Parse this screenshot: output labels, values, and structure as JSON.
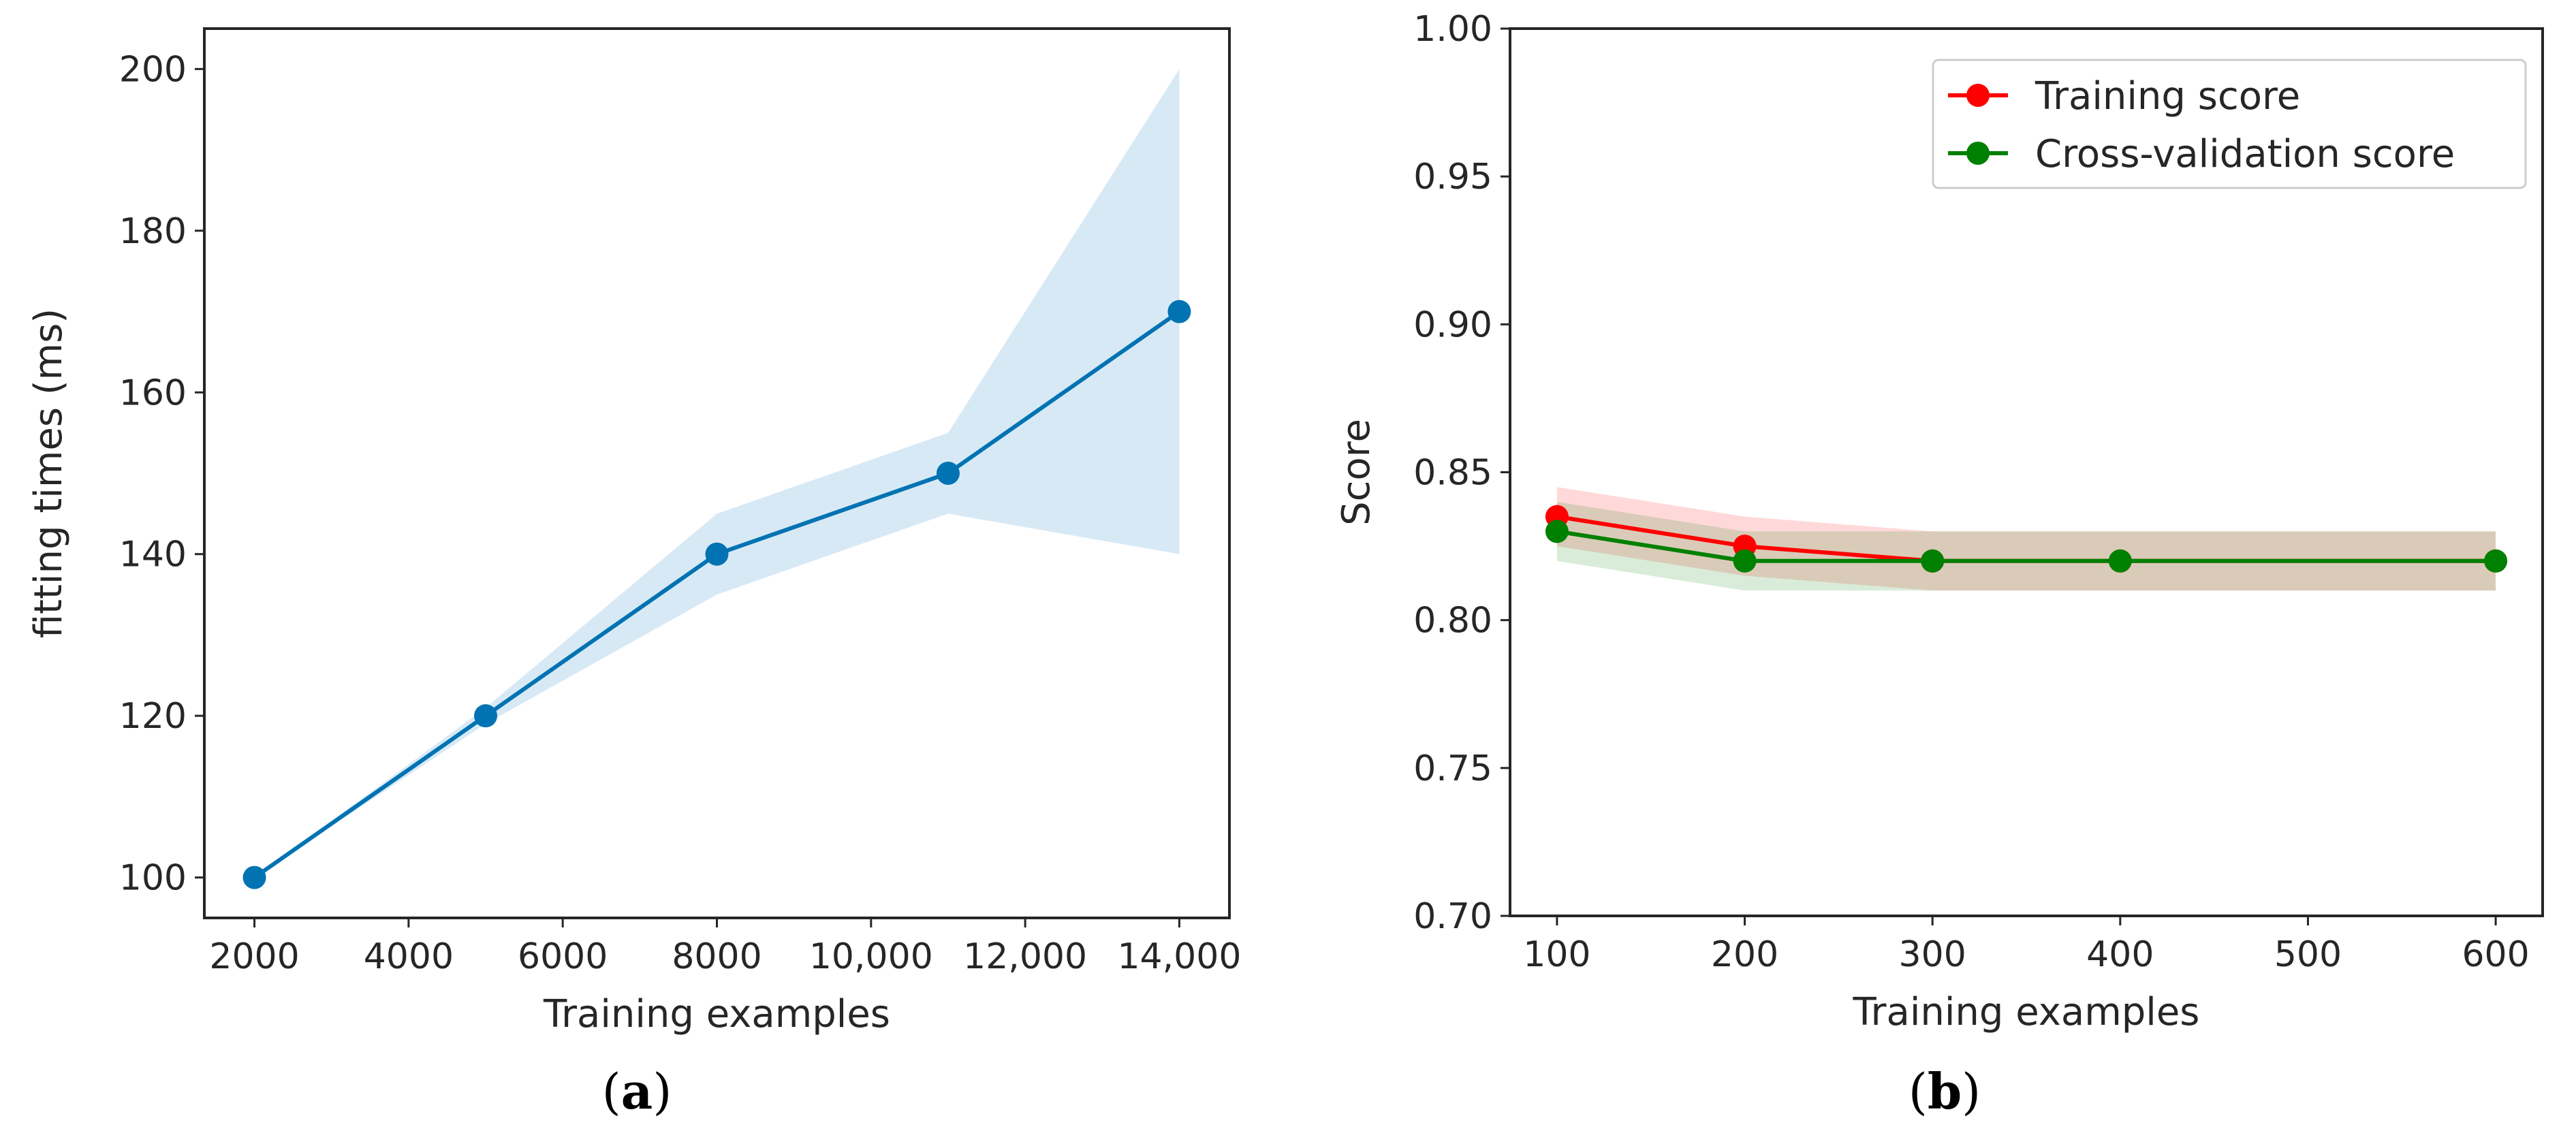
{
  "chart_data": [
    {
      "type": "line",
      "caption_letter": "a",
      "x": [
        2000,
        5000,
        8000,
        11000,
        14000
      ],
      "series": [
        {
          "name": "fitting times",
          "values": [
            100,
            120,
            140,
            150,
            170
          ],
          "band_lower": [
            100,
            119,
            135,
            145,
            140
          ],
          "band_upper": [
            100,
            121,
            145,
            155,
            200
          ],
          "color": "#0173b2",
          "band_color": "#d8e9f6"
        }
      ],
      "xlabel": "Training examples",
      "ylabel": "fitting times (ms)",
      "xlim": [
        1350,
        14650
      ],
      "ylim": [
        95,
        205
      ],
      "xticks": [
        2000,
        4000,
        6000,
        8000,
        10000,
        12000,
        14000
      ],
      "xtick_labels": [
        "2000",
        "4000",
        "6000",
        "8000",
        "10,000",
        "12,000",
        "14,000"
      ],
      "yticks": [
        100,
        120,
        140,
        160,
        180,
        200
      ],
      "ytick_labels": [
        "100",
        "120",
        "140",
        "160",
        "180",
        "200"
      ]
    },
    {
      "type": "line",
      "caption_letter": "b",
      "x": [
        100,
        200,
        300,
        400,
        600
      ],
      "series": [
        {
          "name": "Training score",
          "values": [
            0.835,
            0.825,
            0.82,
            0.82,
            0.82
          ],
          "band_lower": [
            0.825,
            0.815,
            0.81,
            0.81,
            0.81
          ],
          "band_upper": [
            0.845,
            0.835,
            0.83,
            0.83,
            0.83
          ],
          "color": "#ff0000",
          "band_color": "#ff0000"
        },
        {
          "name": "Cross-validation score",
          "values": [
            0.83,
            0.82,
            0.82,
            0.82,
            0.82
          ],
          "band_lower": [
            0.82,
            0.81,
            0.81,
            0.81,
            0.81
          ],
          "band_upper": [
            0.84,
            0.83,
            0.83,
            0.83,
            0.83
          ],
          "color": "#008000",
          "band_color": "#008000"
        }
      ],
      "xlabel": "Training examples",
      "ylabel": "Score",
      "xlim": [
        75,
        625
      ],
      "ylim": [
        0.7,
        1.0
      ],
      "xticks": [
        100,
        200,
        300,
        400,
        500,
        600
      ],
      "xtick_labels": [
        "100",
        "200",
        "300",
        "400",
        "500",
        "600"
      ],
      "yticks": [
        0.7,
        0.75,
        0.8,
        0.85,
        0.9,
        0.95,
        1.0
      ],
      "ytick_labels": [
        "0.70",
        "0.75",
        "0.80",
        "0.85",
        "0.90",
        "0.95",
        "1.00"
      ],
      "legend_position": "top-right"
    }
  ]
}
